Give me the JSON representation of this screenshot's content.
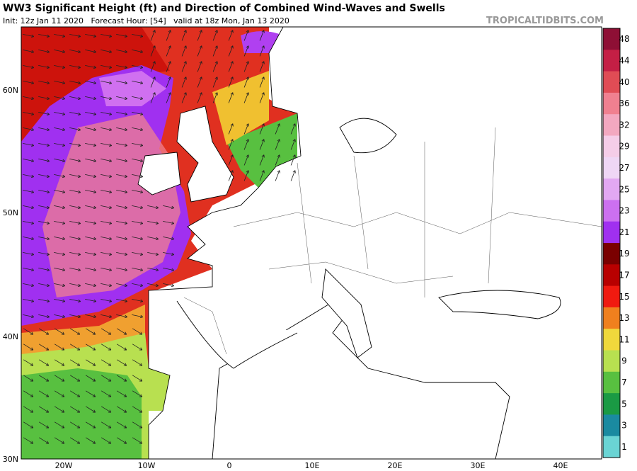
{
  "header": {
    "title": "WW3 Significant Height (ft) and Direction of Combined Wind-Waves and Swells",
    "subtitle": "Init: 12z Jan 11 2020   Forecast Hour: [54]   valid at 18z Mon, Jan 13 2020",
    "source": "TROPICALTIDBITS.COM"
  },
  "map": {
    "lat_labels": [
      "60N",
      "50N",
      "40N",
      "30N"
    ],
    "lon_labels": [
      "20W",
      "10W",
      "0",
      "10E",
      "20E",
      "30E",
      "40E"
    ]
  },
  "colorbar": {
    "labels": [
      "48",
      "44",
      "40",
      "36",
      "32",
      "29",
      "27",
      "25",
      "23",
      "21",
      "19",
      "17",
      "15",
      "13",
      "11",
      "9",
      "7",
      "5",
      "3",
      "1"
    ],
    "colors": [
      "#8e0f35",
      "#c41f45",
      "#e04c55",
      "#f08090",
      "#f3a8c0",
      "#f5cde8",
      "#efd7f5",
      "#e2a8f2",
      "#cc70f0",
      "#a030f0",
      "#7a0000",
      "#b80000",
      "#f01a10",
      "#f0801e",
      "#f0d83c",
      "#b8e050",
      "#58c040",
      "#1a9a44",
      "#1a8aa0",
      "#6ad4d4"
    ]
  }
}
